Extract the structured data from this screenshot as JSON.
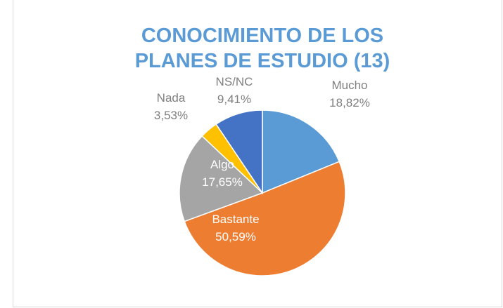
{
  "chart_data": {
    "type": "pie",
    "title": "CONOCIMIENTO DE LOS PLANES DE ESTUDIO (13)",
    "categories": [
      "Mucho",
      "Bastante",
      "Algo",
      "Nada",
      "NS/NC"
    ],
    "values": [
      18.82,
      50.59,
      17.65,
      3.53,
      9.41
    ],
    "value_labels": [
      "18,82%",
      "50,59%",
      "17,65%",
      "3,53%",
      "9,41%"
    ],
    "colors": [
      "#5b9bd5",
      "#ed7d31",
      "#a5a5a5",
      "#ffc000",
      "#4472c4"
    ]
  }
}
